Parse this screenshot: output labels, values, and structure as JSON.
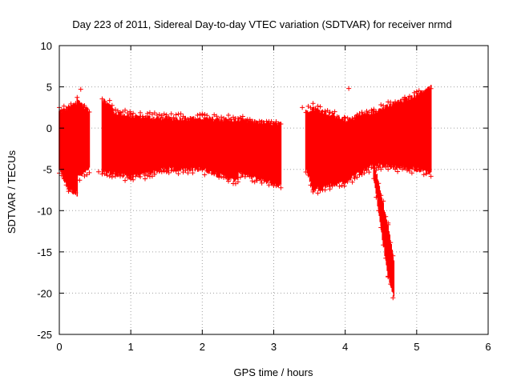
{
  "chart_data": {
    "type": "scatter",
    "title": "Day 223 of 2011, Sidereal Day-to-day VTEC variation (SDTVAR) for receiver nrmd",
    "xlabel": "GPS time / hours",
    "ylabel": "SDTVAR / TECUs",
    "xlim": [
      0,
      6
    ],
    "ylim": [
      -25,
      10
    ],
    "x_ticks": [
      0,
      1,
      2,
      3,
      4,
      5,
      6
    ],
    "y_ticks": [
      10,
      5,
      0,
      -5,
      -10,
      -15,
      -20,
      -25
    ],
    "grid": true,
    "marker": "+",
    "series": [
      {
        "name": "SDTVAR",
        "color": "#ff0000",
        "bands": [
          {
            "x": [
              0.0,
              0.13
            ],
            "upper": [
              2.0,
              2.5
            ],
            "lower": [
              -5.0,
              -7.5
            ]
          },
          {
            "x": [
              0.13,
              0.25
            ],
            "upper": [
              2.5,
              3.0
            ],
            "lower": [
              -7.5,
              -8.0
            ]
          },
          {
            "x": [
              0.25,
              0.42
            ],
            "upper": [
              3.5,
              2.0
            ],
            "lower": [
              -6.0,
              -5.0
            ]
          },
          {
            "x": [
              0.6,
              0.75
            ],
            "upper": [
              3.5,
              2.5
            ],
            "lower": [
              -5.5,
              -5.5
            ]
          },
          {
            "x": [
              0.75,
              1.0
            ],
            "upper": [
              2.0,
              1.5
            ],
            "lower": [
              -5.5,
              -6.0
            ]
          },
          {
            "x": [
              1.0,
              1.5
            ],
            "upper": [
              1.5,
              1.2
            ],
            "lower": [
              -6.0,
              -5.0
            ]
          },
          {
            "x": [
              1.5,
              2.0
            ],
            "upper": [
              1.2,
              1.2
            ],
            "lower": [
              -5.0,
              -5.0
            ]
          },
          {
            "x": [
              2.0,
              2.5
            ],
            "upper": [
              1.2,
              1.0
            ],
            "lower": [
              -5.0,
              -6.5
            ]
          },
          {
            "x": [
              2.5,
              3.1
            ],
            "upper": [
              1.0,
              0.5
            ],
            "lower": [
              -5.5,
              -7.0
            ]
          },
          {
            "x": [
              3.45,
              3.55
            ],
            "upper": [
              2.0,
              2.5
            ],
            "lower": [
              -5.0,
              -7.5
            ]
          },
          {
            "x": [
              3.55,
              4.0
            ],
            "upper": [
              2.5,
              1.0
            ],
            "lower": [
              -7.5,
              -6.5
            ]
          },
          {
            "x": [
              4.0,
              4.4
            ],
            "upper": [
              1.0,
              2.0
            ],
            "lower": [
              -6.5,
              -4.5
            ]
          },
          {
            "x": [
              4.4,
              4.6
            ],
            "upper": [
              -4.0,
              -12.0
            ],
            "lower": [
              -6.0,
              -18.0
            ]
          },
          {
            "x": [
              4.6,
              4.68
            ],
            "upper": [
              -12.0,
              -16.0
            ],
            "lower": [
              -18.0,
              -20.5
            ]
          },
          {
            "x": [
              4.4,
              5.0
            ],
            "upper": [
              2.0,
              4.0
            ],
            "lower": [
              -4.5,
              -5.0
            ]
          },
          {
            "x": [
              5.0,
              5.2
            ],
            "upper": [
              4.0,
              5.0
            ],
            "lower": [
              -5.0,
              -5.5
            ]
          }
        ],
        "outliers": [
          {
            "x": 3.4,
            "y": 2.5
          },
          {
            "x": 4.05,
            "y": 4.8
          },
          {
            "x": 0.3,
            "y": 4.7
          },
          {
            "x": 0.55,
            "y": -5.3
          }
        ]
      }
    ]
  }
}
